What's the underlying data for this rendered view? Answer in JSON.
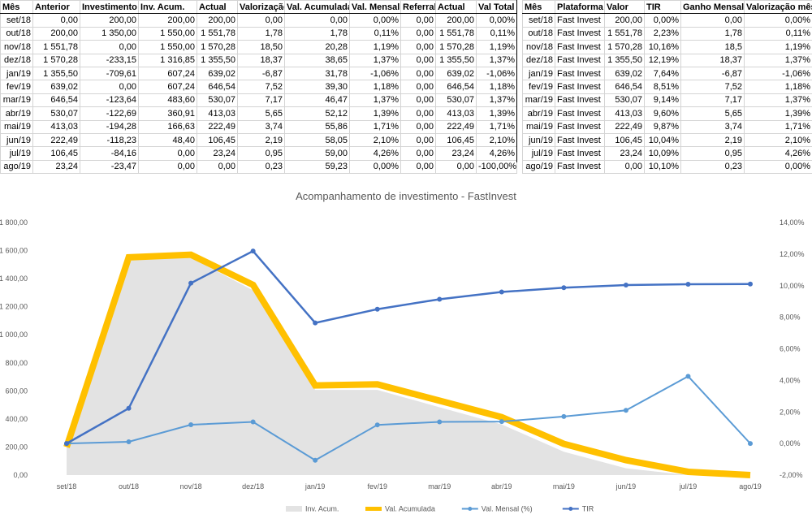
{
  "table1": {
    "headers": [
      "Mês",
      "Anterior",
      "Investimento",
      "Inv. Acum.",
      "Actual",
      "Valorização",
      "Val. Acumulada",
      "Val. Mensal (",
      "Referral",
      "Actual",
      "Val Total"
    ],
    "rows": [
      [
        "set/18",
        "0,00",
        "200,00",
        "200,00",
        "200,00",
        "0,00",
        "0,00",
        "0,00%",
        "0,00",
        "200,00",
        "0,00%"
      ],
      [
        "out/18",
        "200,00",
        "1 350,00",
        "1 550,00",
        "1 551,78",
        "1,78",
        "1,78",
        "0,11%",
        "0,00",
        "1 551,78",
        "0,11%"
      ],
      [
        "nov/18",
        "1 551,78",
        "0,00",
        "1 550,00",
        "1 570,28",
        "18,50",
        "20,28",
        "1,19%",
        "0,00",
        "1 570,28",
        "1,19%"
      ],
      [
        "dez/18",
        "1 570,28",
        "-233,15",
        "1 316,85",
        "1 355,50",
        "18,37",
        "38,65",
        "1,37%",
        "0,00",
        "1 355,50",
        "1,37%"
      ],
      [
        "jan/19",
        "1 355,50",
        "-709,61",
        "607,24",
        "639,02",
        "-6,87",
        "31,78",
        "-1,06%",
        "0,00",
        "639,02",
        "-1,06%"
      ],
      [
        "fev/19",
        "639,02",
        "0,00",
        "607,24",
        "646,54",
        "7,52",
        "39,30",
        "1,18%",
        "0,00",
        "646,54",
        "1,18%"
      ],
      [
        "mar/19",
        "646,54",
        "-123,64",
        "483,60",
        "530,07",
        "7,17",
        "46,47",
        "1,37%",
        "0,00",
        "530,07",
        "1,37%"
      ],
      [
        "abr/19",
        "530,07",
        "-122,69",
        "360,91",
        "413,03",
        "5,65",
        "52,12",
        "1,39%",
        "0,00",
        "413,03",
        "1,39%"
      ],
      [
        "mai/19",
        "413,03",
        "-194,28",
        "166,63",
        "222,49",
        "3,74",
        "55,86",
        "1,71%",
        "0,00",
        "222,49",
        "1,71%"
      ],
      [
        "jun/19",
        "222,49",
        "-118,23",
        "48,40",
        "106,45",
        "2,19",
        "58,05",
        "2,10%",
        "0,00",
        "106,45",
        "2,10%"
      ],
      [
        "jul/19",
        "106,45",
        "-84,16",
        "0,00",
        "23,24",
        "0,95",
        "59,00",
        "4,26%",
        "0,00",
        "23,24",
        "4,26%"
      ],
      [
        "ago/19",
        "23,24",
        "-23,47",
        "0,00",
        "0,00",
        "0,23",
        "59,23",
        "0,00%",
        "0,00",
        "0,00",
        "-100,00%"
      ]
    ]
  },
  "table2": {
    "headers": [
      "Mês",
      "Plataforma",
      "Valor",
      "TIR",
      "Ganho Mensal",
      "Valorização mês"
    ],
    "rows": [
      [
        "set/18",
        "Fast Invest",
        "200,00",
        "0,00%",
        "0,00",
        "0,00%"
      ],
      [
        "out/18",
        "Fast Invest",
        "1 551,78",
        "2,23%",
        "1,78",
        "0,11%"
      ],
      [
        "nov/18",
        "Fast Invest",
        "1 570,28",
        "10,16%",
        "18,5",
        "1,19%"
      ],
      [
        "dez/18",
        "Fast Invest",
        "1 355,50",
        "12,19%",
        "18,37",
        "1,37%"
      ],
      [
        "jan/19",
        "Fast Invest",
        "639,02",
        "7,64%",
        "-6,87",
        "-1,06%"
      ],
      [
        "fev/19",
        "Fast Invest",
        "646,54",
        "8,51%",
        "7,52",
        "1,18%"
      ],
      [
        "mar/19",
        "Fast Invest",
        "530,07",
        "9,14%",
        "7,17",
        "1,37%"
      ],
      [
        "abr/19",
        "Fast Invest",
        "413,03",
        "9,60%",
        "5,65",
        "1,39%"
      ],
      [
        "mai/19",
        "Fast Invest",
        "222,49",
        "9,87%",
        "3,74",
        "1,71%"
      ],
      [
        "jun/19",
        "Fast Invest",
        "106,45",
        "10,04%",
        "2,19",
        "2,10%"
      ],
      [
        "jul/19",
        "Fast Invest",
        "23,24",
        "10,09%",
        "0,95",
        "4,26%"
      ],
      [
        "ago/19",
        "Fast Invest",
        "0,00",
        "10,10%",
        "0,23",
        "0,00%"
      ]
    ]
  },
  "chart_data": {
    "type": "line",
    "title": "Acompanhamento de investimento - FastInvest",
    "categories": [
      "set/18",
      "out/18",
      "nov/18",
      "dez/18",
      "jan/19",
      "fev/19",
      "mar/19",
      "abr/19",
      "mai/19",
      "jun/19",
      "jul/19",
      "ago/19"
    ],
    "y_left": {
      "min": 0,
      "max": 1800,
      "step": 200,
      "tick_labels": [
        "0,00",
        "200,00",
        "400,00",
        "600,00",
        "800,00",
        "1 000,00",
        "1 200,00",
        "1 400,00",
        "1 600,00",
        "1 800,00"
      ]
    },
    "y_right": {
      "min": -2,
      "max": 14,
      "step": 2,
      "tick_labels": [
        "-2,00%",
        "0,00%",
        "2,00%",
        "4,00%",
        "6,00%",
        "8,00%",
        "10,00%",
        "12,00%",
        "14,00%"
      ]
    },
    "series": [
      {
        "name": "Inv. Acum.",
        "type": "area",
        "axis": "left",
        "color": "#e3e3e3",
        "values": [
          200,
          1550,
          1550,
          1316.85,
          607.24,
          607.24,
          483.6,
          360.91,
          166.63,
          48.4,
          0,
          0
        ]
      },
      {
        "name": "Val. Acumulada",
        "type": "line",
        "axis": "left",
        "color": "#ffc000",
        "values": [
          200,
          1551.78,
          1570.28,
          1355.5,
          639.02,
          646.54,
          530.07,
          413.03,
          222.49,
          106.45,
          23.24,
          0
        ]
      },
      {
        "name": "Val. Mensal (%)",
        "type": "line",
        "axis": "right",
        "color": "#5b9bd5",
        "values": [
          0,
          0.11,
          1.19,
          1.37,
          -1.06,
          1.18,
          1.37,
          1.39,
          1.71,
          2.1,
          4.26,
          0
        ]
      },
      {
        "name": "TIR",
        "type": "line",
        "axis": "right",
        "color": "#4472c4",
        "values": [
          0,
          2.23,
          10.16,
          12.19,
          7.64,
          8.51,
          9.14,
          9.6,
          9.87,
          10.04,
          10.09,
          10.1
        ]
      }
    ],
    "legend_position": "bottom",
    "grid": false
  }
}
